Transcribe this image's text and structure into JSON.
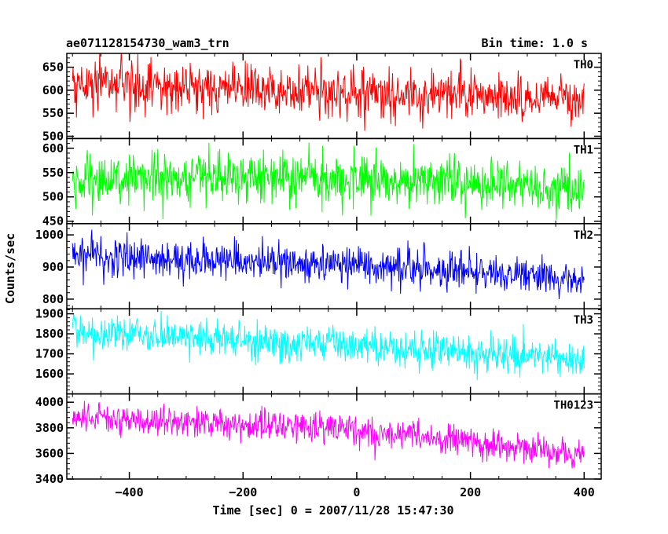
{
  "chart_data": {
    "type": "line",
    "title": "ae071128154730_wam3_trn",
    "subtitle": "Bin time: 1.0 s",
    "xlabel": "Time [sec] 0 = 2007/11/28 15:47:30",
    "ylabel": "Counts/sec",
    "xlim": [
      -510,
      430
    ],
    "xticks": [
      -400,
      -200,
      0,
      200,
      400
    ],
    "bin_time_s": 1.0,
    "grid": false,
    "panels": [
      {
        "name": "TH0",
        "color": "#ff0000",
        "ylim": [
          495,
          680
        ],
        "yticks": [
          500,
          550,
          600,
          650
        ],
        "trend": {
          "x": [
            -500,
            0,
            400
          ],
          "y": [
            612,
            598,
            575
          ]
        },
        "noise_sd": 28
      },
      {
        "name": "TH1",
        "color": "#00ff00",
        "ylim": [
          445,
          620
        ],
        "yticks": [
          450,
          500,
          550,
          600
        ],
        "trend": {
          "x": [
            -500,
            0,
            400
          ],
          "y": [
            540,
            538,
            518
          ]
        },
        "noise_sd": 27
      },
      {
        "name": "TH2",
        "color": "#0000ff",
        "ylim": [
          770,
          1035
        ],
        "yticks": [
          800,
          900,
          1000
        ],
        "trend": {
          "x": [
            -500,
            0,
            400
          ],
          "y": [
            935,
            910,
            860
          ]
        },
        "noise_sd": 30
      },
      {
        "name": "TH3",
        "color": "#00ffff",
        "ylim": [
          1500,
          1925
        ],
        "yticks": [
          1600,
          1700,
          1800,
          1900
        ],
        "trend": {
          "x": [
            -500,
            0,
            400
          ],
          "y": [
            1805,
            1740,
            1670
          ]
        },
        "noise_sd": 45
      },
      {
        "name": "TH0123",
        "color": "#ff00ff",
        "ylim": [
          3400,
          4065
        ],
        "yticks": [
          3400,
          3600,
          3800,
          4000
        ],
        "trend": {
          "x": [
            -500,
            0,
            400
          ],
          "y": [
            3880,
            3790,
            3590
          ]
        },
        "noise_sd": 60
      }
    ]
  }
}
